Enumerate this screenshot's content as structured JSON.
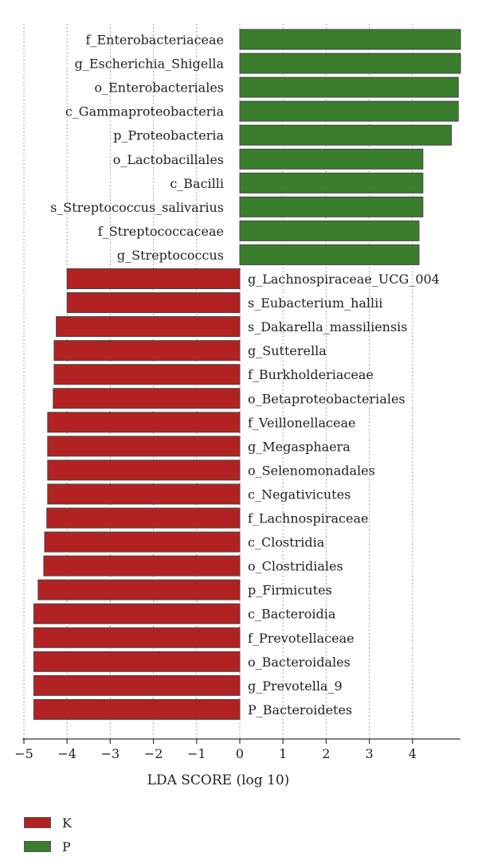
{
  "chart_data": {
    "type": "bar",
    "orientation": "horizontal",
    "xlabel": "LDA SCORE (log 10)",
    "xlim": [
      -5,
      5
    ],
    "xticks": [
      -5,
      -4,
      -3,
      -2,
      -1,
      0,
      1,
      2,
      3,
      4
    ],
    "grid": true,
    "legend_position": "bottom-left",
    "series": [
      {
        "name": "K",
        "color": "#b22222"
      },
      {
        "name": "P",
        "color": "#3a7d2c"
      }
    ],
    "bars": [
      {
        "label": "f_Enterobacteriaceae",
        "value": 5.12,
        "group": "P"
      },
      {
        "label": "g_Escherichia_Shigella",
        "value": 5.12,
        "group": "P"
      },
      {
        "label": "o_Enterobacteriales",
        "value": 5.06,
        "group": "P"
      },
      {
        "label": "c_Gammaproteobacteria",
        "value": 5.06,
        "group": "P"
      },
      {
        "label": "p_Proteobacteria",
        "value": 4.9,
        "group": "P"
      },
      {
        "label": "o_Lactobacillales",
        "value": 4.24,
        "group": "P"
      },
      {
        "label": "c_Bacilli",
        "value": 4.24,
        "group": "P"
      },
      {
        "label": "s_Streptococcus_salivarius",
        "value": 4.24,
        "group": "P"
      },
      {
        "label": "f_Streptococcaceae",
        "value": 4.15,
        "group": "P"
      },
      {
        "label": "g_Streptococcus",
        "value": 4.15,
        "group": "P"
      },
      {
        "label": "g_Lachnospiraceae_UCG_004",
        "value": -4.0,
        "group": "K"
      },
      {
        "label": "s_Eubacterium_hallii",
        "value": -4.0,
        "group": "K"
      },
      {
        "label": "s_Dakarella_massiliensis",
        "value": -4.25,
        "group": "K"
      },
      {
        "label": "g_Sutterella",
        "value": -4.3,
        "group": "K"
      },
      {
        "label": "f_Burkholderiaceae",
        "value": -4.3,
        "group": "K"
      },
      {
        "label": "o_Betaproteobacteriales",
        "value": -4.32,
        "group": "K"
      },
      {
        "label": "f_Veillonellaceae",
        "value": -4.45,
        "group": "K"
      },
      {
        "label": "g_Megasphaera",
        "value": -4.45,
        "group": "K"
      },
      {
        "label": "o_Selenomonadales",
        "value": -4.45,
        "group": "K"
      },
      {
        "label": "c_Negativicutes",
        "value": -4.45,
        "group": "K"
      },
      {
        "label": "f_Lachnospiraceae",
        "value": -4.47,
        "group": "K"
      },
      {
        "label": "c_Clostridia",
        "value": -4.52,
        "group": "K"
      },
      {
        "label": "o_Clostridiales",
        "value": -4.54,
        "group": "K"
      },
      {
        "label": "p_Firmicutes",
        "value": -4.67,
        "group": "K"
      },
      {
        "label": "c_Bacteroidia",
        "value": -4.77,
        "group": "K"
      },
      {
        "label": "f_Prevotellaceae",
        "value": -4.77,
        "group": "K"
      },
      {
        "label": "o_Bacteroidales",
        "value": -4.77,
        "group": "K"
      },
      {
        "label": "g_Prevotella_9",
        "value": -4.77,
        "group": "K"
      },
      {
        "label": "P_Bacteroidetes",
        "value": -4.77,
        "group": "K"
      }
    ]
  }
}
